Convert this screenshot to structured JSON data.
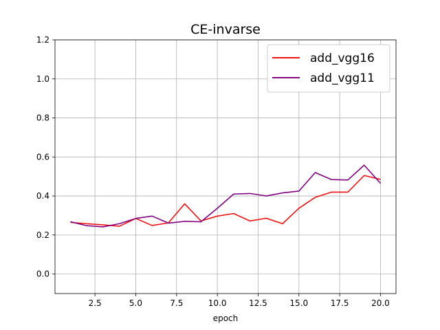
{
  "chart_data": {
    "type": "line",
    "title": "CE-invarse",
    "xlabel": "epoch",
    "ylabel": "",
    "xlim": [
      0.05,
      20.95
    ],
    "ylim": [
      -0.1,
      1.2
    ],
    "xticks": [
      2.5,
      5.0,
      7.5,
      10.0,
      12.5,
      15.0,
      17.5,
      20.0
    ],
    "xtick_labels": [
      "2.5",
      "5.0",
      "7.5",
      "10.0",
      "12.5",
      "15.0",
      "17.5",
      "20.0"
    ],
    "yticks": [
      0.0,
      0.2,
      0.4,
      0.6,
      0.8,
      1.0,
      1.2
    ],
    "ytick_labels": [
      "0.0",
      "0.2",
      "0.4",
      "0.6",
      "0.8",
      "1.0",
      "1.2"
    ],
    "grid": true,
    "legend_position": "top-right",
    "x": [
      1,
      2,
      3,
      4,
      5,
      6,
      7,
      8,
      9,
      10,
      11,
      12,
      13,
      14,
      15,
      16,
      17,
      18,
      19,
      20
    ],
    "series": [
      {
        "name": "add_vgg16",
        "color": "#ee1111",
        "values": [
          0.265,
          0.258,
          0.252,
          0.245,
          0.285,
          0.249,
          0.262,
          0.36,
          0.272,
          0.297,
          0.31,
          0.272,
          0.286,
          0.258,
          0.337,
          0.393,
          0.42,
          0.42,
          0.505,
          0.485
        ]
      },
      {
        "name": "add_vgg11",
        "color": "#800080",
        "values": [
          0.268,
          0.248,
          0.242,
          0.258,
          0.285,
          0.297,
          0.261,
          0.27,
          0.268,
          0.337,
          0.41,
          0.413,
          0.4,
          0.416,
          0.425,
          0.52,
          0.484,
          0.482,
          0.558,
          0.465
        ]
      }
    ]
  }
}
